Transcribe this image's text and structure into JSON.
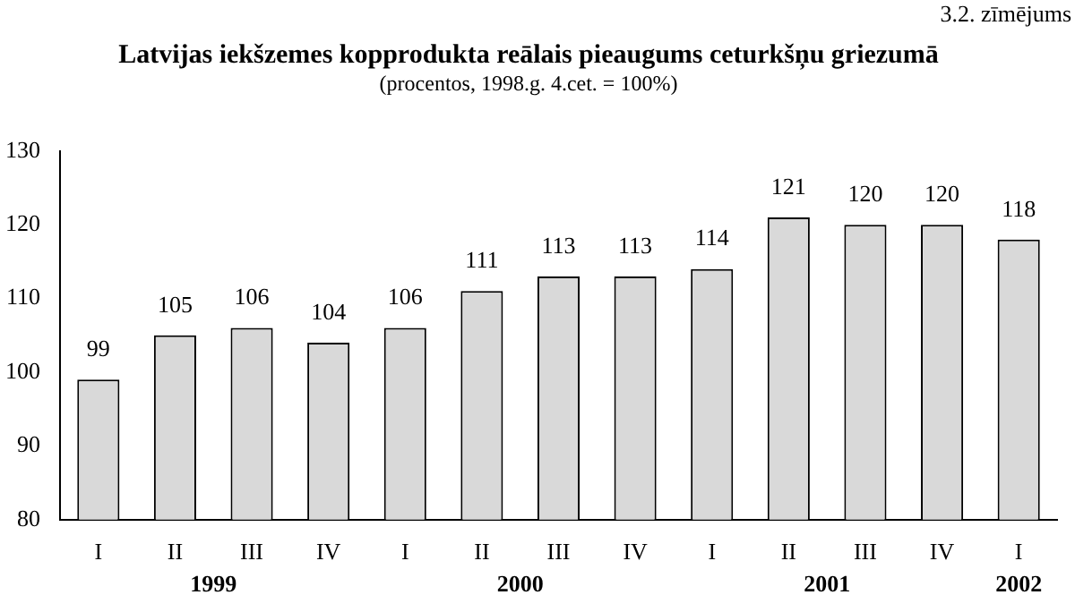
{
  "chart_data": {
    "type": "bar",
    "title": "Latvijas iekšzemes kopprodukta reālais pieaugums ceturkšņu griezumā",
    "subtitle": "(procentos, 1998.g. 4.cet. = 100%)",
    "categories": [
      "I",
      "II",
      "III",
      "IV",
      "I",
      "II",
      "III",
      "IV",
      "I",
      "II",
      "III",
      "IV",
      "I"
    ],
    "values": [
      99,
      105,
      106,
      104,
      106,
      111,
      113,
      113,
      114,
      121,
      120,
      120,
      118
    ],
    "color": "#d9d9d9",
    "ylim": [
      80,
      130
    ],
    "yticks": [
      80,
      90,
      100,
      110,
      120,
      130
    ],
    "grid": false,
    "legend": false,
    "data_labels": true,
    "annotations": [
      "3.2. zīmējums",
      "1999",
      "2000",
      "2001",
      "2002"
    ]
  }
}
